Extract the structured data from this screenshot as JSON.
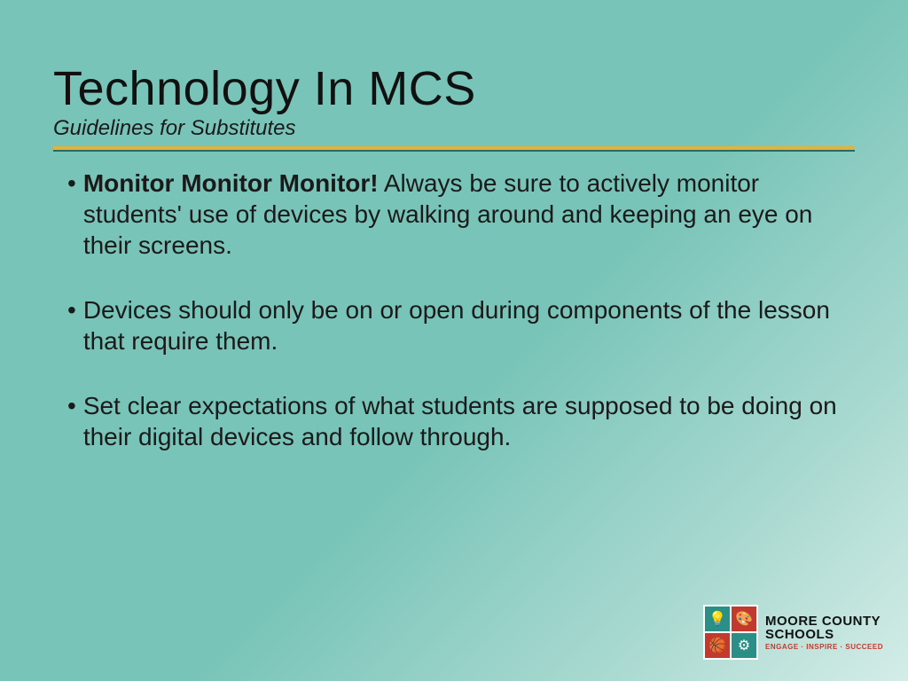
{
  "slide": {
    "title": "Technology In MCS",
    "subtitle": "Guidelines for Substitutes",
    "title_fontsize": 54,
    "subtitle_fontsize": 24,
    "rule_color": "#e3b23c",
    "rule_underline_color": "#2a6b60",
    "background_gradient": [
      "#79c4b8",
      "#a8d9d0",
      "#d4ece7"
    ],
    "text_color": "#1a1a1a",
    "bullets": [
      {
        "bold": "Monitor  Monitor  Monitor!",
        "rest": "  Always be sure to actively monitor students' use of devices by walking around and keeping an eye on their screens."
      },
      {
        "bold": "",
        "rest": "Devices should only be on or open during components of the lesson that require them."
      },
      {
        "bold": "",
        "rest": "Set clear expectations of what students are supposed to be doing on their digital devices and follow through."
      }
    ],
    "bullet_fontsize": 28
  },
  "logo": {
    "line1": "MOORE COUNTY",
    "line2": "SCHOOLS",
    "tagline": "ENGAGE · INSPIRE · SUCCEED",
    "quad_colors": {
      "tl": "#2a8f87",
      "tr": "#c23a2e",
      "bl": "#c23a2e",
      "br": "#2a8f87"
    },
    "icons": {
      "tl": "💡",
      "tr": "🎨",
      "bl": "🏀",
      "br": "⚙"
    }
  }
}
